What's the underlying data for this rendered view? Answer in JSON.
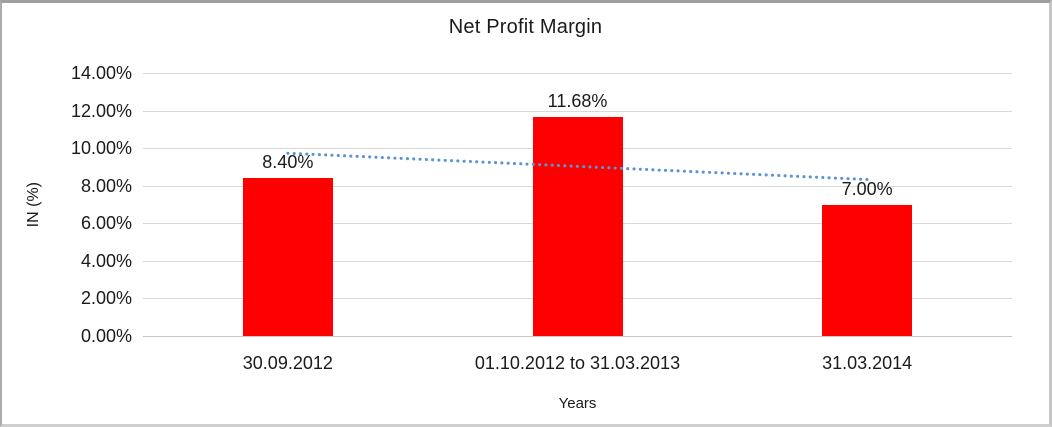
{
  "chart_data": {
    "type": "bar",
    "title": "Net Profit Margin",
    "xlabel": "Years",
    "ylabel": "IN (%)",
    "categories": [
      "30.09.2012",
      "01.10.2012 to 31.03.2013",
      "31.03.2014"
    ],
    "values": [
      8.4,
      11.68,
      7.0
    ],
    "data_labels": [
      "8.40%",
      "11.68%",
      "7.00%"
    ],
    "y_ticks": [
      "0.00%",
      "2.00%",
      "4.00%",
      "6.00%",
      "8.00%",
      "10.00%",
      "12.00%",
      "14.00%"
    ],
    "ylim": [
      0,
      14
    ],
    "grid": true,
    "legend": false,
    "bar_color": "#ff0000",
    "gridline_color": "#d9d9d9",
    "axis_line_color": "#c6c6c6",
    "text_color": "#1a1a1a",
    "trendline": {
      "type": "linear",
      "style": "dotted",
      "color": "#5b93d2",
      "start_value": 9.73,
      "end_value": 8.33
    }
  }
}
